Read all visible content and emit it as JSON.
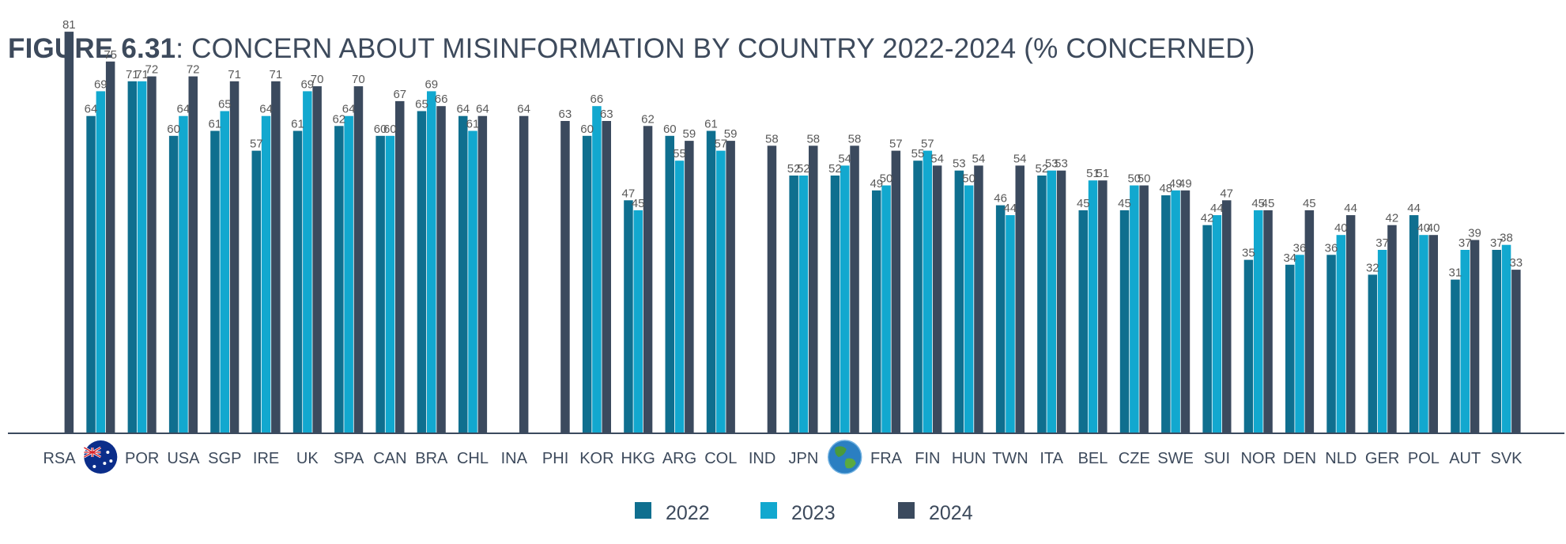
{
  "title": {
    "prefix": "FIGURE 6.31",
    "text": ": CONCERN ABOUT MISINFORMATION BY COUNTRY 2022-2024 (% CONCERNED)"
  },
  "colors": {
    "2022": "#0f6f8f",
    "2023": "#12a8cf",
    "2024": "#3b4a5e",
    "axis": "#3b4a5e"
  },
  "icons": {
    "australia": "australia-flag-icon",
    "global": "globe-icon"
  },
  "chart_data": {
    "type": "bar",
    "series_names": [
      "2022",
      "2023",
      "2024"
    ],
    "ylim": [
      0,
      85
    ],
    "categories": [
      {
        "label": "RSA",
        "values": [
          null,
          null,
          81
        ]
      },
      {
        "label": "",
        "icon": "australia",
        "values": [
          64,
          69,
          75
        ]
      },
      {
        "label": "POR",
        "values": [
          71,
          71,
          72
        ]
      },
      {
        "label": "USA",
        "values": [
          60,
          64,
          72
        ]
      },
      {
        "label": "SGP",
        "values": [
          61,
          65,
          71
        ]
      },
      {
        "label": "IRE",
        "values": [
          57,
          64,
          71
        ]
      },
      {
        "label": "UK",
        "values": [
          61,
          69,
          70
        ]
      },
      {
        "label": "SPA",
        "values": [
          62,
          64,
          70
        ]
      },
      {
        "label": "CAN",
        "values": [
          60,
          60,
          67
        ]
      },
      {
        "label": "BRA",
        "values": [
          65,
          69,
          66
        ]
      },
      {
        "label": "CHL",
        "values": [
          64,
          61,
          64
        ]
      },
      {
        "label": "INA",
        "values": [
          null,
          null,
          64
        ]
      },
      {
        "label": "PHI",
        "values": [
          null,
          null,
          63
        ]
      },
      {
        "label": "KOR",
        "values": [
          60,
          66,
          63
        ]
      },
      {
        "label": "HKG",
        "values": [
          47,
          45,
          62
        ]
      },
      {
        "label": "ARG",
        "values": [
          60,
          55,
          59
        ]
      },
      {
        "label": "COL",
        "values": [
          61,
          57,
          59
        ]
      },
      {
        "label": "IND",
        "values": [
          null,
          null,
          58
        ]
      },
      {
        "label": "JPN",
        "values": [
          52,
          52,
          58
        ]
      },
      {
        "label": "",
        "icon": "global",
        "values": [
          52,
          54,
          58
        ]
      },
      {
        "label": "FRA",
        "values": [
          49,
          50,
          57
        ]
      },
      {
        "label": "FIN",
        "values": [
          55,
          57,
          54
        ]
      },
      {
        "label": "HUN",
        "values": [
          53,
          50,
          54
        ]
      },
      {
        "label": "TWN",
        "values": [
          46,
          44,
          54
        ]
      },
      {
        "label": "ITA",
        "values": [
          52,
          53,
          53
        ]
      },
      {
        "label": "BEL",
        "values": [
          45,
          51,
          51
        ]
      },
      {
        "label": "CZE",
        "values": [
          45,
          50,
          50
        ]
      },
      {
        "label": "SWE",
        "values": [
          48,
          49,
          49
        ]
      },
      {
        "label": "SUI",
        "values": [
          42,
          44,
          47
        ]
      },
      {
        "label": "NOR",
        "values": [
          35,
          45,
          45
        ]
      },
      {
        "label": "DEN",
        "values": [
          34,
          36,
          45
        ]
      },
      {
        "label": "NLD",
        "values": [
          36,
          40,
          44
        ]
      },
      {
        "label": "GER",
        "values": [
          32,
          37,
          42
        ]
      },
      {
        "label": "POL",
        "values": [
          44,
          40,
          40
        ]
      },
      {
        "label": "AUT",
        "values": [
          31,
          37,
          39
        ]
      },
      {
        "label": "SVK",
        "values": [
          37,
          38,
          33
        ]
      }
    ]
  }
}
